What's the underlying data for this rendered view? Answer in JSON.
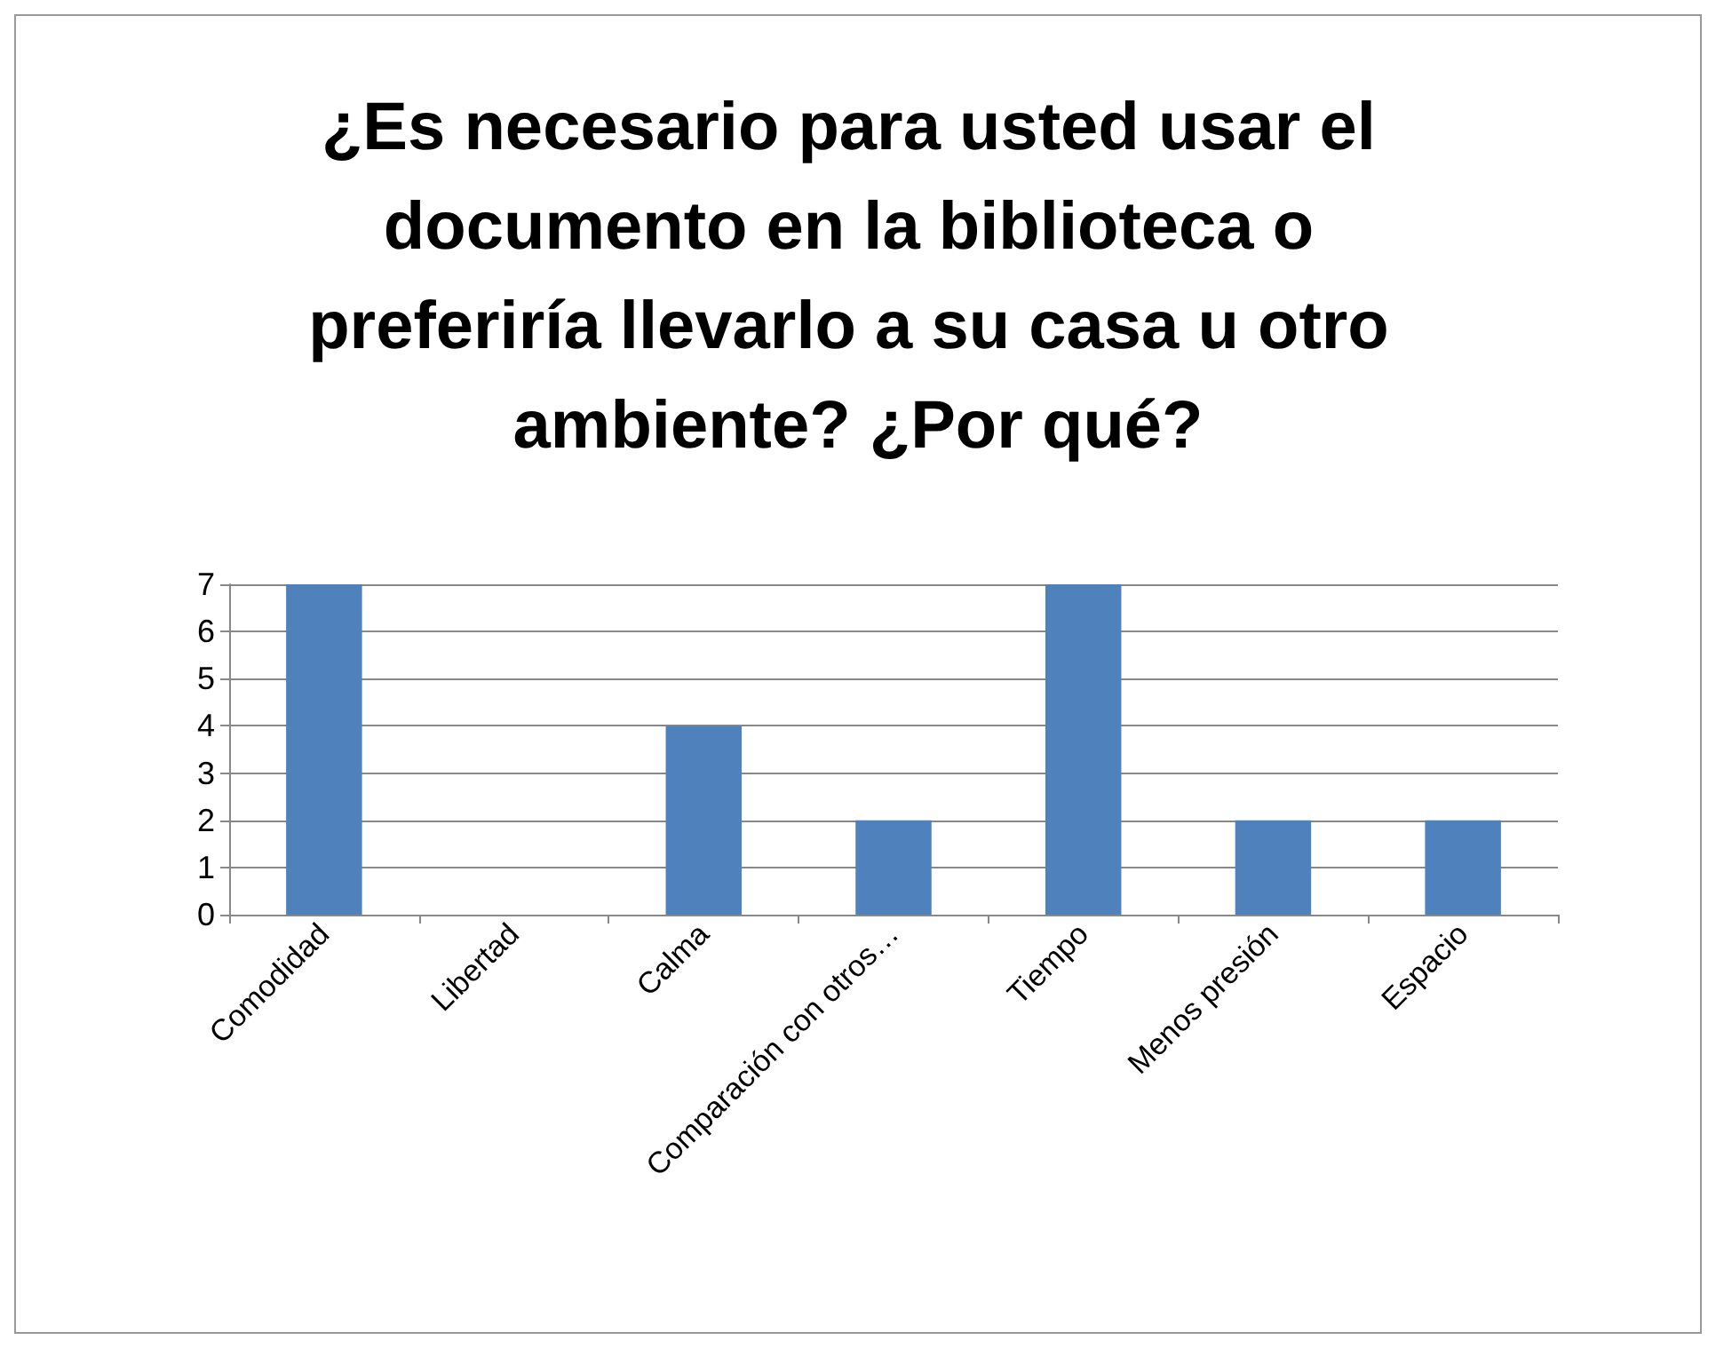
{
  "chart_data": {
    "type": "bar",
    "title": "¿Es necesario para usted usar el documento en la biblioteca o preferiría llevarlo a su casa u otro ambiente? ¿Por qué?",
    "categories": [
      "Comodidad",
      "Libertad",
      "Calma",
      "Comparación con otros…",
      "Tiempo",
      "Menos presión",
      "Espacio"
    ],
    "values": [
      7,
      0,
      4,
      2,
      7,
      2,
      2
    ],
    "color": "#4f81bd",
    "ylim": [
      0,
      7
    ],
    "yticks": [
      0,
      1,
      2,
      3,
      4,
      5,
      6,
      7
    ],
    "grid": "y"
  }
}
